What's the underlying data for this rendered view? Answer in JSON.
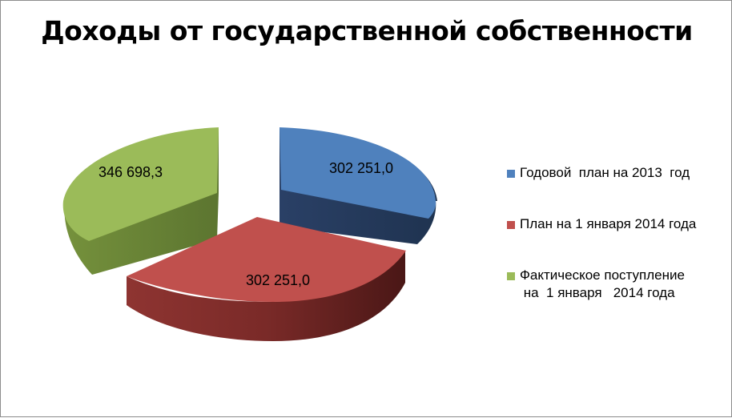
{
  "chart_data": {
    "type": "pie",
    "title": "Доходы от государственной собственности",
    "categories": [
      "Годовой  план на 2013  год",
      "План на 1 января 2014 года",
      "Фактическое поступление\n на  1 января   2014 года"
    ],
    "values": [
      302251.0,
      302251.0,
      346698.3
    ],
    "data_labels": [
      "302 251,0",
      "302 251,0",
      "346 698,3"
    ],
    "exploded": true,
    "three_d": true,
    "legend_position": "right",
    "colors": {
      "blue": "#4f81bd",
      "red": "#c0504d",
      "green": "#9bbb59"
    }
  }
}
